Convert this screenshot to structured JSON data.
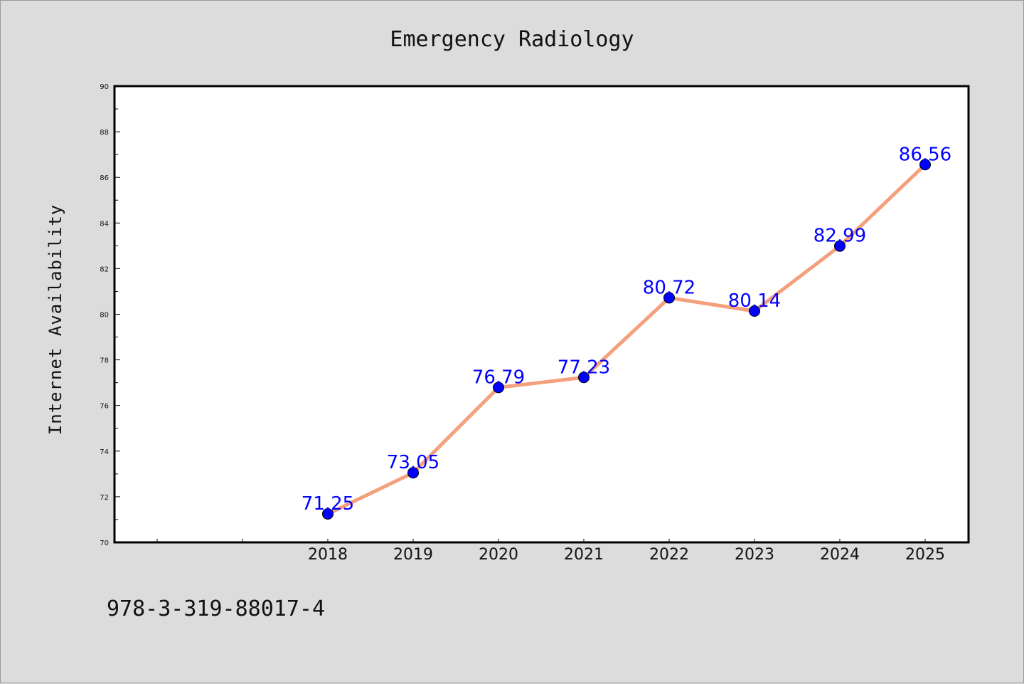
{
  "chart_data": {
    "type": "line",
    "title": "Emergency Radiology",
    "xlabel": "",
    "ylabel": "Internet Availability",
    "categories": [
      "2018",
      "2019",
      "2020",
      "2021",
      "2022",
      "2023",
      "2024",
      "2025"
    ],
    "values": [
      71.25,
      73.05,
      76.79,
      77.23,
      80.72,
      80.14,
      82.99,
      86.56
    ],
    "data_labels": [
      "71.25",
      "73.05",
      "76.79",
      "77.23",
      "80.72",
      "80.14",
      "82.99",
      "86.56"
    ],
    "ylim": [
      70,
      90
    ],
    "yticks": [
      70,
      72,
      74,
      76,
      78,
      80,
      82,
      84,
      86,
      88,
      90
    ],
    "grid": false,
    "legend": "none",
    "line_color": "#f4a07c",
    "marker_color": "#0000ff",
    "label_color": "#0000ff"
  },
  "footer": {
    "isbn": "978-3-319-88017-4"
  }
}
